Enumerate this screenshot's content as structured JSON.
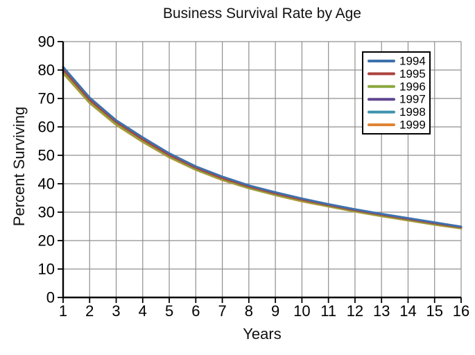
{
  "chart_data": {
    "type": "line",
    "title": "Business Survival Rate by Age",
    "xlabel": "Years",
    "ylabel": "Percent Surviving",
    "x": [
      1,
      2,
      3,
      4,
      5,
      6,
      7,
      8,
      9,
      10,
      11,
      12,
      13,
      14,
      15,
      16
    ],
    "xlim": [
      1,
      16
    ],
    "ylim": [
      0,
      90
    ],
    "xticks": [
      1,
      2,
      3,
      4,
      5,
      6,
      7,
      8,
      9,
      10,
      11,
      12,
      13,
      14,
      15,
      16
    ],
    "yticks": [
      0,
      10,
      20,
      30,
      40,
      50,
      60,
      70,
      80,
      90
    ],
    "grid": true,
    "legend_position": "upper right",
    "series": [
      {
        "name": "1994",
        "color": "#3E71AD",
        "values": [
          81.1,
          70.3,
          62.3,
          56.3,
          50.7,
          46.1,
          42.5,
          39.4,
          37.0,
          34.8,
          32.8,
          31.0,
          29.4,
          27.9,
          26.4,
          24.9
        ]
      },
      {
        "name": "1995",
        "color": "#AC433D",
        "values": [
          80.2,
          69.5,
          61.7,
          55.6,
          50.1,
          45.6,
          42.0,
          39.0,
          36.6,
          34.4,
          32.5,
          30.7,
          29.1,
          27.6,
          26.1,
          24.7
        ]
      },
      {
        "name": "1996",
        "color": "#8AA83E",
        "values": [
          79.2,
          68.6,
          60.9,
          54.9,
          49.5,
          45.0,
          41.5,
          38.5,
          36.1,
          34.0,
          32.1,
          30.3,
          28.7,
          27.2,
          25.7,
          24.4
        ]
      },
      {
        "name": "1997",
        "color": "#5F4690",
        "values": [
          79.7,
          69.0,
          61.3,
          55.3,
          49.8,
          45.3,
          41.7,
          38.8,
          36.4,
          34.2,
          32.3,
          30.5,
          28.9,
          27.4,
          25.9,
          24.5
        ]
      },
      {
        "name": "1998",
        "color": "#3E93AD",
        "values": [
          80.7,
          69.9,
          62.0,
          56.0,
          50.4,
          45.9,
          42.3,
          39.2,
          36.8,
          34.6,
          32.7,
          30.9,
          29.3,
          27.7,
          26.2,
          24.8
        ]
      },
      {
        "name": "1999",
        "color": "#E08434",
        "values": [
          78.9,
          68.4,
          60.7,
          54.7,
          49.3,
          44.9,
          41.3,
          38.4,
          36.0,
          33.8,
          32.0,
          30.2,
          28.6,
          27.1,
          25.6,
          24.3
        ]
      }
    ]
  },
  "style": {
    "background": "#ffffff",
    "grid_color": "#8f8f8f",
    "axis_color": "#000000",
    "tick_label_color": "#000000",
    "legend_border_color": "#000000",
    "legend_background": "#ffffff"
  }
}
